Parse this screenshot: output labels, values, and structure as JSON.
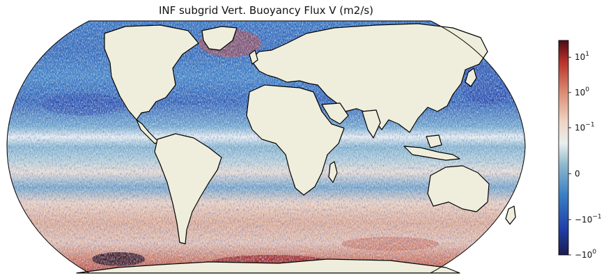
{
  "title": "INF subgrid Vert. Buoyancy Flux V (m2/s)",
  "projection": "Robinson",
  "colormap": "balance (diverging: navy-blue-teal-white-salmon-red-dark red)",
  "colors": {
    "land": "#efeedc",
    "coastline": "#000000",
    "cmap_stops": [
      "#1b1d4e",
      "#1f3fa8",
      "#3a7fc4",
      "#8fb9cc",
      "#e9eeee",
      "#f0d4c4",
      "#d98c72",
      "#b8322a",
      "#4a0c16"
    ]
  },
  "colorbar": {
    "scale": "symlog",
    "range": [
      -1,
      30
    ],
    "ticks": [
      {
        "value": 10,
        "label": "10",
        "exp": "1"
      },
      {
        "value": 1,
        "label": "10",
        "exp": "0"
      },
      {
        "value": 0.1,
        "label": "10",
        "exp": "−1"
      },
      {
        "value": 0,
        "label": "0",
        "exp": ""
      },
      {
        "value": -0.1,
        "label": "−10",
        "exp": "−1"
      },
      {
        "value": -1,
        "label": "−10",
        "exp": "0"
      }
    ]
  }
}
